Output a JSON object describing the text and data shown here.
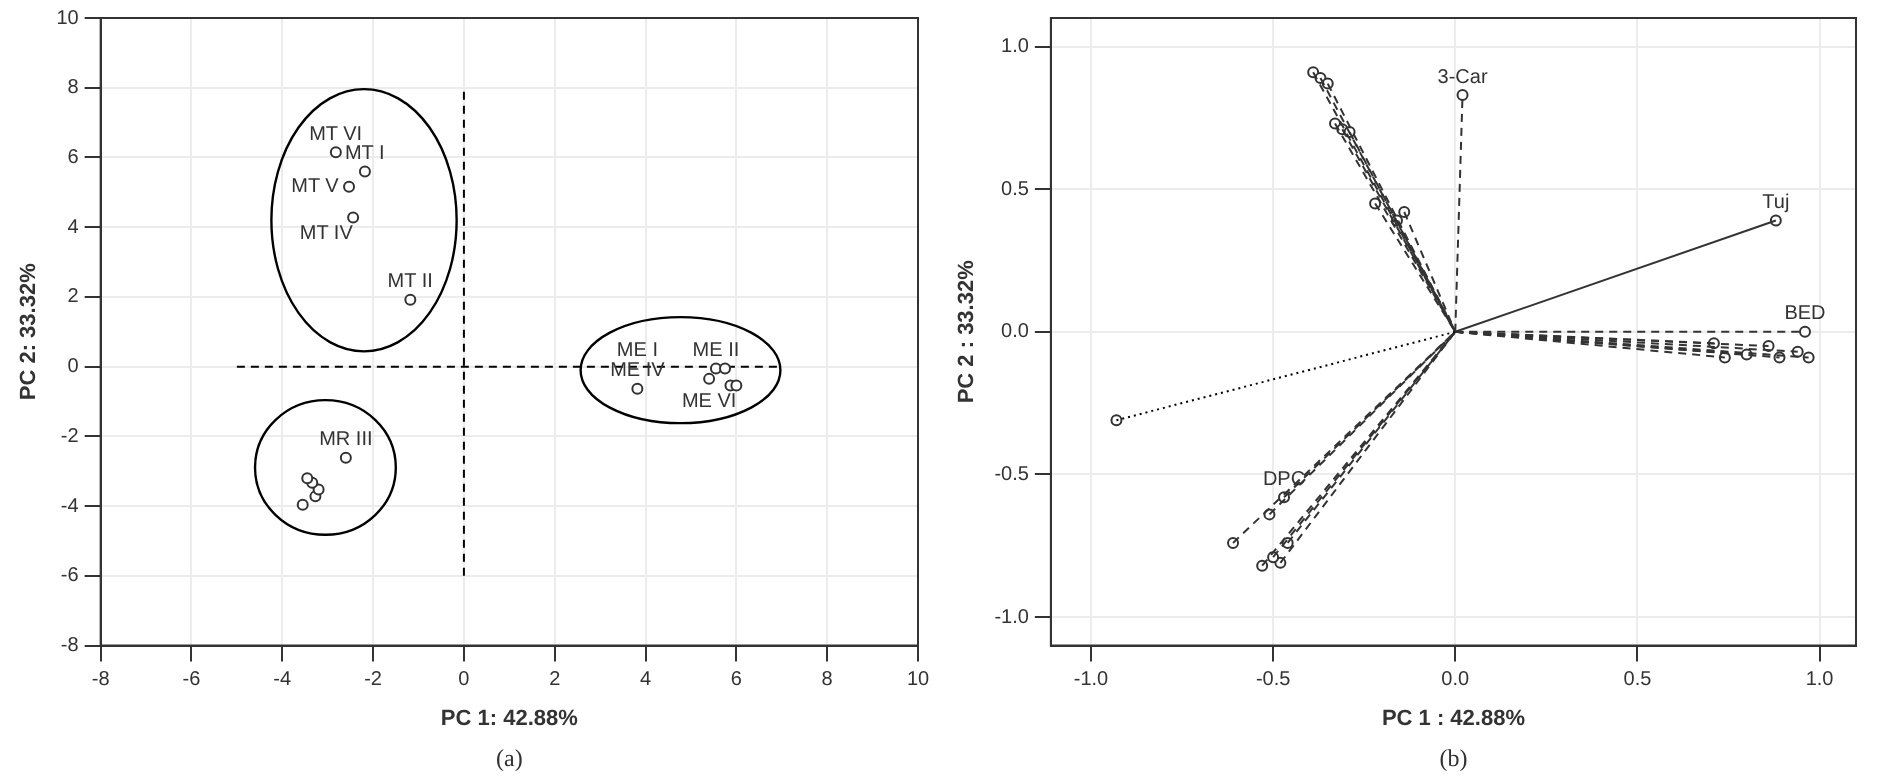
{
  "chart_data": [
    {
      "type": "scatter",
      "xlabel": "PC 1: 42.88%",
      "ylabel": "PC 2: 33.32%",
      "xlim": [
        -8,
        10
      ],
      "ylim": [
        -8,
        10
      ],
      "xticks": [
        -8,
        -6,
        -4,
        -2,
        0,
        2,
        4,
        6,
        8,
        10
      ],
      "yticks": [
        -8,
        -6,
        -4,
        -2,
        0,
        2,
        4,
        6,
        8,
        10
      ],
      "grid": true,
      "marker": "circle",
      "legend": false,
      "series": [
        {
          "color": "#333333",
          "x": [
            -2.82,
            -2.18,
            -2.53,
            -2.44,
            -1.18,
            -2.6,
            -3.55,
            -3.27,
            -3.2,
            -3.34,
            -3.45,
            3.82,
            5.4,
            5.87,
            6.0,
            5.55,
            5.75
          ],
          "values": [
            6.15,
            5.6,
            5.16,
            4.28,
            1.92,
            -2.61,
            -3.96,
            -3.72,
            -3.52,
            -3.33,
            -3.2,
            -0.63,
            -0.35,
            -0.54,
            -0.54,
            -0.05,
            -0.05
          ]
        },
        {
          "type": "line",
          "marker": "none",
          "line_style": "dashed",
          "color": "#000000",
          "x": [
            -5,
            7
          ],
          "values": [
            0,
            0
          ]
        },
        {
          "type": "line",
          "marker": "none",
          "line_style": "dashed",
          "color": "#000000",
          "x": [
            0,
            0
          ],
          "values": [
            -6,
            8
          ]
        }
      ],
      "annotations": [
        {
          "text": "MT VI",
          "x": -2.82,
          "y": 6.15
        },
        {
          "text": "MT I",
          "x": -2.18,
          "y": 5.6
        },
        {
          "text": "MT V",
          "x": -2.53,
          "y": 5.16
        },
        {
          "text": "MT IV",
          "x": -2.44,
          "y": 4.28
        },
        {
          "text": "MT II",
          "x": -1.18,
          "y": 1.92
        },
        {
          "text": "MR III",
          "x": -2.6,
          "y": -2.61
        },
        {
          "text": "ME I",
          "x": 3.82,
          "y": -0.05
        },
        {
          "text": "ME IV",
          "x": 3.82,
          "y": -0.63
        },
        {
          "text": "ME II",
          "x": 5.55,
          "y": -0.05
        },
        {
          "text": "ME VI",
          "x": 6.0,
          "y": -0.54
        },
        "(a)"
      ]
    },
    {
      "type": "scatter",
      "xlabel": "PC 1 : 42.88%",
      "ylabel": "PC 2 : 33.32%",
      "xlim": [
        -1.11,
        1.1
      ],
      "ylim": [
        -1.1,
        1.1
      ],
      "xticks": [
        {
          "value": -1,
          "label": "-1.0"
        },
        -0.5,
        {
          "value": 0,
          "label": "0.0"
        },
        0.5,
        {
          "value": 1,
          "label": "1.0"
        }
      ],
      "yticks": [
        {
          "value": -1,
          "label": "-1.0"
        },
        -0.5,
        {
          "value": 0,
          "label": "0.0"
        },
        0.5,
        {
          "value": 1,
          "label": "1.0"
        }
      ],
      "grid": true,
      "marker": "circle",
      "legend": false,
      "series": [
        {
          "type": "line",
          "marker": "none",
          "line_style": "dashed",
          "color": "#333333",
          "x": [
            0,
            0.02
          ],
          "values": [
            0,
            0.83
          ]
        },
        {
          "type": "line",
          "marker": "none",
          "line_style": "solid",
          "color": "#333333",
          "x": [
            0,
            0.88
          ],
          "values": [
            0,
            0.39
          ]
        },
        {
          "type": "line",
          "marker": "none",
          "line_style": "dotted",
          "color": "#000000",
          "x": [
            -0.93,
            0
          ],
          "values": [
            -0.31,
            0
          ]
        },
        {
          "type": "line",
          "marker": "none",
          "line_style": "dashed",
          "color": "#333333",
          "x": [
            -0.39,
            0
          ],
          "values": [
            0.91,
            0
          ]
        },
        {
          "type": "line",
          "marker": "none",
          "line_style": "dashed",
          "color": "#333333",
          "x": [
            -0.37,
            0
          ],
          "values": [
            0.89,
            0
          ]
        },
        {
          "type": "line",
          "marker": "none",
          "line_style": "dashed",
          "color": "#333333",
          "x": [
            -0.35,
            0
          ],
          "values": [
            0.87,
            0
          ]
        },
        {
          "type": "line",
          "marker": "none",
          "line_style": "dashed",
          "color": "#333333",
          "x": [
            -0.33,
            0
          ],
          "values": [
            0.73,
            0
          ]
        },
        {
          "type": "line",
          "marker": "none",
          "line_style": "dashed",
          "color": "#333333",
          "x": [
            -0.31,
            0
          ],
          "values": [
            0.71,
            0
          ]
        },
        {
          "type": "line",
          "marker": "none",
          "line_style": "dashed",
          "color": "#333333",
          "x": [
            -0.29,
            0
          ],
          "values": [
            0.7,
            0
          ]
        },
        {
          "type": "line",
          "marker": "none",
          "line_style": "dashed",
          "color": "#333333",
          "x": [
            -0.22,
            0
          ],
          "values": [
            0.45,
            0
          ]
        },
        {
          "type": "line",
          "marker": "none",
          "line_style": "dashed",
          "color": "#333333",
          "x": [
            -0.14,
            0
          ],
          "values": [
            0.42,
            0
          ]
        },
        {
          "type": "line",
          "marker": "none",
          "line_style": "dashed",
          "color": "#333333",
          "x": [
            -0.16,
            0
          ],
          "values": [
            0.39,
            0
          ]
        },
        {
          "type": "line",
          "marker": "none",
          "line_style": "dashed",
          "color": "#333333",
          "x": [
            0,
            0.71
          ],
          "values": [
            0,
            -0.04
          ]
        },
        {
          "type": "line",
          "marker": "none",
          "line_style": "dashed",
          "color": "#333333",
          "x": [
            0,
            0.74
          ],
          "values": [
            0,
            -0.09
          ]
        },
        {
          "type": "line",
          "marker": "none",
          "line_style": "dashed",
          "color": "#333333",
          "x": [
            0,
            0.8
          ],
          "values": [
            0,
            -0.08
          ]
        },
        {
          "type": "line",
          "marker": "none",
          "line_style": "dashed",
          "color": "#333333",
          "x": [
            0,
            0.86
          ],
          "values": [
            0,
            -0.05
          ]
        },
        {
          "type": "line",
          "marker": "none",
          "line_style": "dashed",
          "color": "#333333",
          "x": [
            0,
            0.89
          ],
          "values": [
            0,
            -0.09
          ]
        },
        {
          "type": "line",
          "marker": "none",
          "line_style": "dashed",
          "color": "#333333",
          "x": [
            0,
            0.94
          ],
          "values": [
            0,
            -0.07
          ]
        },
        {
          "type": "line",
          "marker": "none",
          "line_style": "dashed",
          "color": "#333333",
          "x": [
            0,
            0.97
          ],
          "values": [
            0,
            -0.09
          ]
        },
        {
          "type": "line",
          "marker": "none",
          "line_style": "dashed",
          "color": "#333333",
          "x": [
            0,
            0.96
          ],
          "values": [
            0,
            0.0
          ]
        },
        {
          "type": "line",
          "marker": "none",
          "line_style": "dashed",
          "color": "#333333",
          "x": [
            -0.47,
            0
          ],
          "values": [
            -0.58,
            0
          ]
        },
        {
          "type": "line",
          "marker": "none",
          "line_style": "dashed",
          "color": "#333333",
          "x": [
            -0.51,
            0
          ],
          "values": [
            -0.64,
            0
          ]
        },
        {
          "type": "line",
          "marker": "none",
          "line_style": "dashed",
          "color": "#333333",
          "x": [
            -0.61,
            0
          ],
          "values": [
            -0.74,
            0
          ]
        },
        {
          "type": "line",
          "marker": "none",
          "line_style": "dashed",
          "color": "#333333",
          "x": [
            -0.53,
            0
          ],
          "values": [
            -0.82,
            0
          ]
        },
        {
          "type": "line",
          "marker": "none",
          "line_style": "dashed",
          "color": "#333333",
          "x": [
            -0.48,
            0
          ],
          "values": [
            -0.81,
            0
          ]
        },
        {
          "type": "line",
          "marker": "none",
          "line_style": "dashed",
          "color": "#333333",
          "x": [
            -0.5,
            0
          ],
          "values": [
            -0.79,
            0
          ]
        },
        {
          "type": "line",
          "marker": "none",
          "line_style": "dashed",
          "color": "#333333",
          "x": [
            -0.46,
            0
          ],
          "values": [
            -0.74,
            0
          ]
        },
        {
          "color": "#333333",
          "x": [
            0.02,
            0.88,
            -0.93,
            -0.39,
            -0.37,
            -0.35,
            -0.33,
            -0.31,
            -0.29,
            -0.22,
            -0.14,
            -0.16,
            0.71,
            0.74,
            0.8,
            0.86,
            0.89,
            0.94,
            0.97,
            0.96,
            -0.47,
            -0.51,
            -0.61,
            -0.53,
            -0.48,
            -0.5,
            -0.46
          ],
          "values": [
            0.83,
            0.39,
            -0.31,
            0.91,
            0.89,
            0.87,
            0.73,
            0.71,
            0.7,
            0.45,
            0.42,
            0.39,
            -0.04,
            -0.09,
            -0.08,
            -0.05,
            -0.09,
            -0.07,
            -0.09,
            0.0,
            -0.58,
            -0.64,
            -0.74,
            -0.82,
            -0.81,
            -0.79,
            -0.74
          ]
        }
      ],
      "annotations": [
        {
          "text": "3-Car",
          "x": 0.02,
          "y": 0.83
        },
        {
          "text": "Tuj",
          "x": 0.88,
          "y": 0.39
        },
        {
          "text": "BED",
          "x": 0.96,
          "y": 0.0
        },
        {
          "text": "DPC",
          "x": -0.47,
          "y": -0.58
        },
        "(b)"
      ]
    }
  ]
}
